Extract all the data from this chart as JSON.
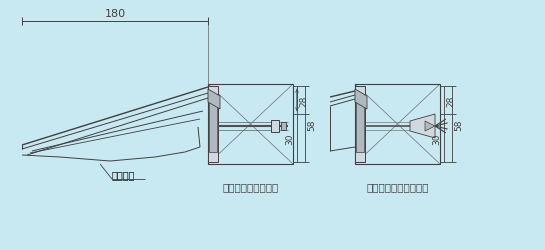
{
  "bg_color": "#c8e8f2",
  "line_color": "#404040",
  "gray_fill": "#b0b8c0",
  "light_gray": "#d0d8e0",
  "title1": "（内部ナット止式）",
  "title2": "（外部アンカー止式）",
  "label_180": "180",
  "label_28a": "28",
  "label_30a": "30",
  "label_58a": "58",
  "label_28b": "28",
  "label_30b": "30",
  "label_58b": "58",
  "label_mizu": "水抜き穴",
  "fig_width": 5.45,
  "fig_height": 2.51,
  "dpi": 100
}
